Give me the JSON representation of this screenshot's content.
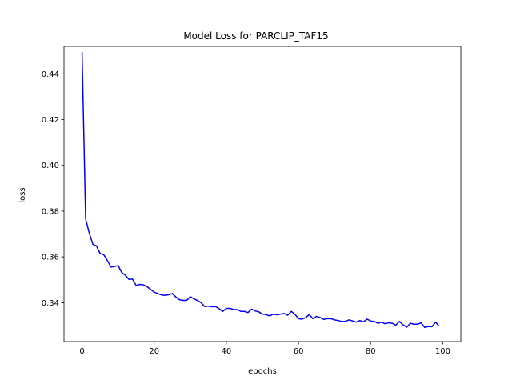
{
  "chart_data": {
    "type": "line",
    "title": "Model Loss for PARCLIP_TAF15",
    "xlabel": "epochs",
    "ylabel": "loss",
    "xlim": [
      -5,
      105
    ],
    "ylim": [
      0.323,
      0.452
    ],
    "xticks": [
      0,
      20,
      40,
      60,
      80,
      100
    ],
    "xtick_labels": [
      "0",
      "20",
      "40",
      "60",
      "80",
      "100"
    ],
    "yticks": [
      0.34,
      0.36,
      0.38,
      0.4,
      0.42,
      0.44
    ],
    "ytick_labels": [
      "0.34",
      "0.36",
      "0.38",
      "0.40",
      "0.42",
      "0.44"
    ],
    "grid": false,
    "series": [
      {
        "color": "#0000ff",
        "x": [
          0,
          1,
          2,
          3,
          4,
          5,
          6,
          7,
          8,
          9,
          10,
          11,
          12,
          13,
          14,
          15,
          16,
          17,
          18,
          19,
          20,
          21,
          22,
          23,
          24,
          25,
          26,
          27,
          28,
          29,
          30,
          31,
          32,
          33,
          34,
          35,
          36,
          37,
          38,
          39,
          40,
          41,
          42,
          43,
          44,
          45,
          46,
          47,
          48,
          49,
          50,
          51,
          52,
          53,
          54,
          55,
          56,
          57,
          58,
          59,
          60,
          61,
          62,
          63,
          64,
          65,
          66,
          67,
          68,
          69,
          70,
          71,
          72,
          73,
          74,
          75,
          76,
          77,
          78,
          79,
          80,
          81,
          82,
          83,
          84,
          85,
          86,
          87,
          88,
          89,
          90,
          91,
          92,
          93,
          94,
          95,
          96,
          97,
          98,
          99
        ],
        "values": [
          0.4495,
          0.3765,
          0.3705,
          0.3655,
          0.3648,
          0.3615,
          0.361,
          0.3585,
          0.3556,
          0.3558,
          0.3562,
          0.3532,
          0.352,
          0.3502,
          0.3503,
          0.3475,
          0.348,
          0.3478,
          0.347,
          0.3458,
          0.3446,
          0.344,
          0.3434,
          0.3432,
          0.3435,
          0.344,
          0.3425,
          0.3413,
          0.341,
          0.341,
          0.3426,
          0.3417,
          0.341,
          0.34,
          0.3383,
          0.3385,
          0.3382,
          0.3383,
          0.3374,
          0.3362,
          0.3375,
          0.3375,
          0.337,
          0.337,
          0.3362,
          0.3362,
          0.3357,
          0.3372,
          0.3364,
          0.336,
          0.335,
          0.3348,
          0.3342,
          0.335,
          0.3347,
          0.335,
          0.3353,
          0.3345,
          0.3362,
          0.335,
          0.333,
          0.3328,
          0.3335,
          0.3348,
          0.333,
          0.334,
          0.3335,
          0.3327,
          0.333,
          0.333,
          0.3325,
          0.3322,
          0.3318,
          0.3318,
          0.3325,
          0.332,
          0.3315,
          0.3322,
          0.3316,
          0.3328,
          0.332,
          0.3318,
          0.331,
          0.3315,
          0.3308,
          0.3312,
          0.331,
          0.3302,
          0.3318,
          0.3303,
          0.3293,
          0.331,
          0.3306,
          0.3306,
          0.3312,
          0.3292,
          0.3296,
          0.3295,
          0.3315,
          0.3297
        ]
      }
    ]
  }
}
